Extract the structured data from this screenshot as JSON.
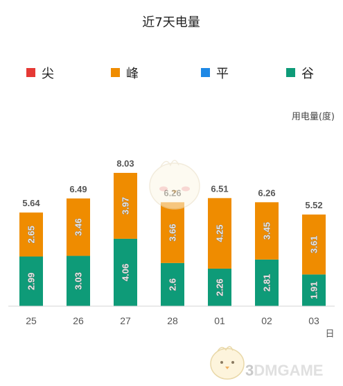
{
  "chart_data": {
    "type": "bar",
    "stacked": true,
    "title": "近7天电量",
    "ylabel": "用电量(度)",
    "xlabel": "日",
    "categories": [
      "25",
      "26",
      "27",
      "28",
      "01",
      "02",
      "03"
    ],
    "totals": [
      5.64,
      6.49,
      8.03,
      6.26,
      6.51,
      6.26,
      5.52
    ],
    "total_labels": [
      "5.64",
      "6.49",
      "8.03",
      "6.26",
      "6.51",
      "6.26",
      "5.52"
    ],
    "series": [
      {
        "name": "尖",
        "color": "#e53935",
        "values": [
          0,
          0,
          0,
          0,
          0,
          0,
          0
        ],
        "labels": [
          "",
          "",
          "",
          "",
          "",
          "",
          ""
        ]
      },
      {
        "name": "峰",
        "color": "#ef8c00",
        "values": [
          2.65,
          3.46,
          3.97,
          3.66,
          4.25,
          3.45,
          3.61
        ],
        "labels": [
          "2.65",
          "3.46",
          "3.97",
          "3.66",
          "4.25",
          "3.45",
          "3.61"
        ]
      },
      {
        "name": "平",
        "color": "#1e88e5",
        "values": [
          0,
          0,
          0,
          0,
          0,
          0,
          0
        ],
        "labels": [
          "",
          "",
          "",
          "",
          "",
          "",
          ""
        ]
      },
      {
        "name": "谷",
        "color": "#0e9b78",
        "values": [
          2.99,
          3.03,
          4.06,
          2.6,
          2.26,
          2.81,
          1.91
        ],
        "labels": [
          "2.99",
          "3.03",
          "4.06",
          "2.6",
          "2.26",
          "2.81",
          "1.91"
        ]
      }
    ],
    "stack_order": [
      "谷",
      "平",
      "峰",
      "尖"
    ],
    "ylim": [
      0,
      8.03
    ],
    "grid": false,
    "legend_position": "top"
  },
  "watermark": {
    "text": "3DMGAME",
    "mascot": "chick-mascot"
  }
}
